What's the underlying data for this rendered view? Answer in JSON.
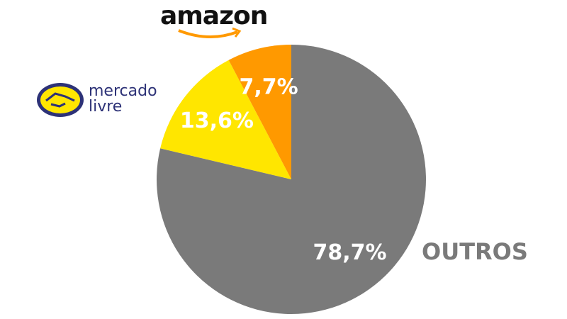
{
  "chart_data": {
    "type": "pie",
    "categories": [
      "OUTROS",
      "mercado livre",
      "amazon"
    ],
    "values": [
      78.7,
      13.6,
      7.7
    ],
    "value_labels": [
      "78,7%",
      "13,6%",
      "7,7%"
    ],
    "colors": [
      "#7a7a7a",
      "#ffe600",
      "#ff9900"
    ]
  }
}
